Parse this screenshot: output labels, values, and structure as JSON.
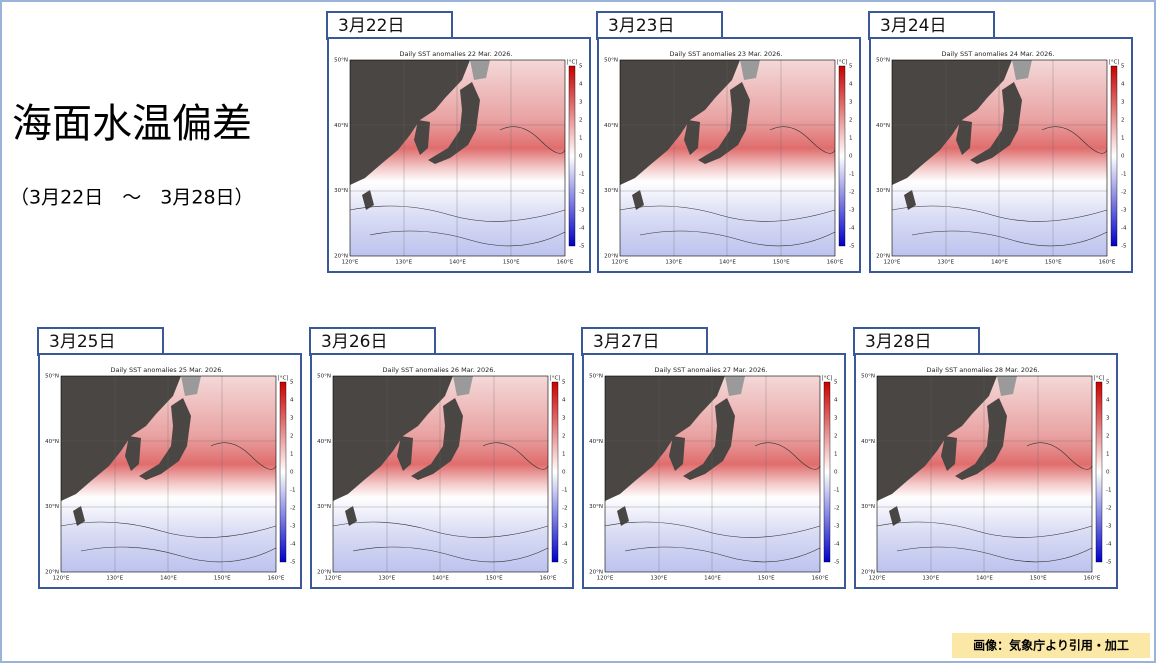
{
  "header": {
    "title": "海面水温偏差",
    "subtitle": "（3月22日　～　3月28日）"
  },
  "map_axes": {
    "lat_labels": [
      "50°N",
      "40°N",
      "30°N",
      "20°N"
    ],
    "lon_labels": [
      "120°E",
      "130°E",
      "140°E",
      "150°E",
      "160°E"
    ],
    "colorbar_unit": "[°C]",
    "colorbar_ticks": [
      5,
      4,
      3,
      2,
      1,
      0,
      -1,
      -2,
      -3,
      -4,
      -5
    ]
  },
  "panels": [
    {
      "date": "3月22日",
      "map_title": "Daily SST anomalies 22 Mar. 2026."
    },
    {
      "date": "3月23日",
      "map_title": "Daily SST anomalies 23 Mar. 2026."
    },
    {
      "date": "3月24日",
      "map_title": "Daily SST anomalies 24 Mar. 2026."
    },
    {
      "date": "3月25日",
      "map_title": "Daily SST anomalies 25 Mar. 2026."
    },
    {
      "date": "3月26日",
      "map_title": "Daily SST anomalies 26 Mar. 2026."
    },
    {
      "date": "3月27日",
      "map_title": "Daily SST anomalies 27 Mar. 2026."
    },
    {
      "date": "3月28日",
      "map_title": "Daily SST anomalies 28 Mar. 2026."
    }
  ],
  "credit": "画像：気象庁より引用・加工"
}
